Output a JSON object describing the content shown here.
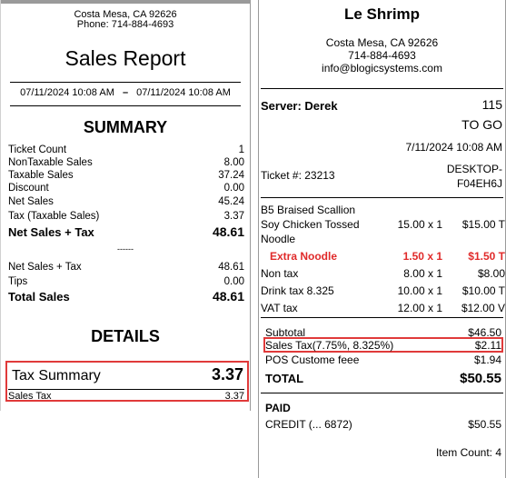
{
  "report": {
    "address_line": "Costa Mesa, CA 92626",
    "phone": "Phone: 714-884-4693",
    "title": "Sales Report",
    "date_from": "07/11/2024 10:08 AM",
    "date_sep": "–",
    "date_to": "07/11/2024 10:08 AM",
    "summary_title": "SUMMARY",
    "summary_rows": [
      {
        "label": "Ticket Count",
        "value": "1"
      },
      {
        "label": "NonTaxable Sales",
        "value": "8.00"
      },
      {
        "label": "Taxable Sales",
        "value": "37.24"
      },
      {
        "label": "Discount",
        "value": "0.00"
      },
      {
        "label": "Net Sales",
        "value": "45.24"
      },
      {
        "label": "Tax (Taxable Sales)",
        "value": "3.37"
      }
    ],
    "net_sales_tax_bold": {
      "label": "Net Sales + Tax",
      "value": "48.61"
    },
    "dash": "------",
    "net_sales_tax": {
      "label": "Net Sales + Tax",
      "value": "48.61"
    },
    "tips": {
      "label": "Tips",
      "value": "0.00"
    },
    "total_sales": {
      "label": "Total Sales",
      "value": "48.61"
    },
    "details_title": "DETAILS",
    "tax_summary": {
      "label": "Tax Summary",
      "value": "3.37"
    },
    "sales_tax": {
      "label": "Sales Tax",
      "value": "3.37"
    }
  },
  "receipt": {
    "store": "Le Shrimp",
    "address_line": "Costa Mesa, CA 92626",
    "phone": "714-884-4693",
    "email": "info@blogicsystems.com",
    "server": "Server: Derek",
    "ticket_no": "115",
    "order_type": "TO GO",
    "datetime": "7/11/2024 10:08 AM",
    "ticket": "Ticket #: 23213",
    "terminal_line1": "DESKTOP-",
    "terminal_line2": "F04EH6J",
    "items": [
      {
        "name": "B5 Braised Scallion",
        "qty": "",
        "amount": ""
      },
      {
        "name": "Soy Chicken Tossed",
        "qty": "15.00 x 1",
        "amount": "$15.00 T"
      },
      {
        "name": "Noodle",
        "qty": "",
        "amount": ""
      },
      {
        "name": "Extra Noodle",
        "qty": "1.50 x 1",
        "amount": "$1.50 T"
      },
      {
        "name": "Non tax",
        "qty": "8.00 x 1",
        "amount": "$8.00"
      },
      {
        "name": "Drink tax 8.325",
        "qty": "10.00 x 1",
        "amount": "$10.00 T"
      },
      {
        "name": "VAT tax",
        "qty": "12.00 x 1",
        "amount": "$12.00 V"
      }
    ],
    "subtotal": {
      "label": "Subtotal",
      "value": "$46.50"
    },
    "sales_tax": {
      "label": "Sales Tax(7.75%, 8.325%)",
      "value": "$2.11"
    },
    "pos_fee": {
      "label": "POS Custome feee",
      "value": "$1.94"
    },
    "total": {
      "label": "TOTAL",
      "value": "$50.55"
    },
    "paid": "PAID",
    "credit": {
      "label": "CREDIT (... 6872)",
      "value": "$50.55"
    },
    "item_count": "Item Count:  4"
  },
  "colors": {
    "highlight": "#e03a3a",
    "modifier": "#e02a2a"
  }
}
